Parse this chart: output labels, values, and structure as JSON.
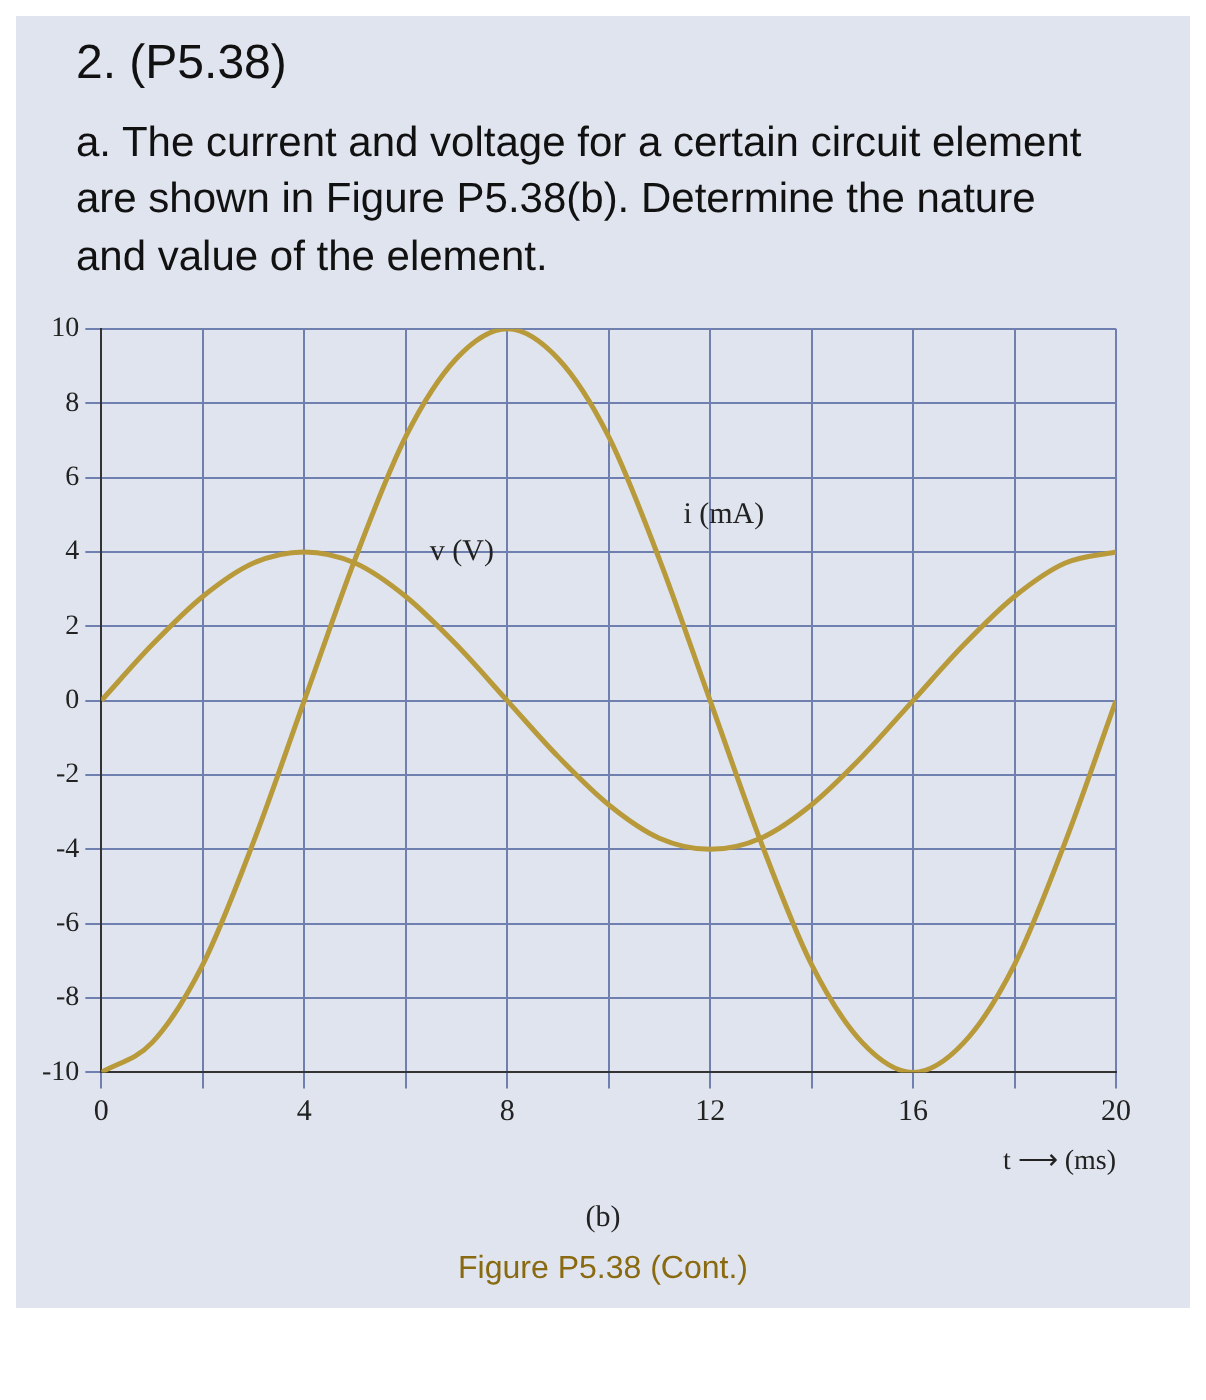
{
  "chart_data": {
    "type": "line",
    "title": "2. (P5.38)",
    "subtitle": "a. The current and voltage for a certain circuit element are shown in Figure P5.38(b). Determine the nature and value of the element.",
    "xlabel": "t ⟶ (ms)",
    "annotations": [
      "(b)",
      "Figure P5.38 (Cont.)"
    ],
    "x": [
      0,
      1,
      2,
      3,
      4,
      5,
      6,
      7,
      8,
      9,
      10,
      11,
      12,
      13,
      14,
      15,
      16,
      17,
      18,
      19,
      20
    ],
    "series": [
      {
        "name": "i (mA)",
        "color": "#b89a3a",
        "values": [
          -10,
          -9.2,
          -7.1,
          -3.8,
          0,
          3.8,
          7.1,
          9.2,
          10,
          9.2,
          7.1,
          3.8,
          0,
          -3.8,
          -7.1,
          -9.2,
          -10,
          -9.2,
          -7.1,
          -3.8,
          0
        ]
      },
      {
        "name": "v (V)",
        "color": "#b89a3a",
        "values": [
          0,
          1.5,
          2.8,
          3.7,
          4,
          3.7,
          2.8,
          1.5,
          0,
          -1.5,
          -2.8,
          -3.7,
          -4,
          -3.7,
          -2.8,
          -1.5,
          0,
          1.5,
          2.8,
          3.7,
          4
        ]
      }
    ],
    "xlim": [
      0,
      20
    ],
    "xticks": [
      0,
      {
        "value": 2,
        "label": null
      },
      4,
      {
        "value": 6,
        "label": null
      },
      8,
      {
        "value": 10,
        "label": null
      },
      12,
      {
        "value": 14,
        "label": null
      },
      16,
      {
        "value": 18,
        "label": null
      },
      20
    ],
    "ylim": [
      -10,
      10
    ],
    "yticks": [
      -10,
      -8,
      -6,
      -4,
      -2,
      0,
      2,
      4,
      6,
      8,
      10
    ],
    "grid": true,
    "legend": false,
    "marker": "none",
    "line_style": "solid"
  }
}
